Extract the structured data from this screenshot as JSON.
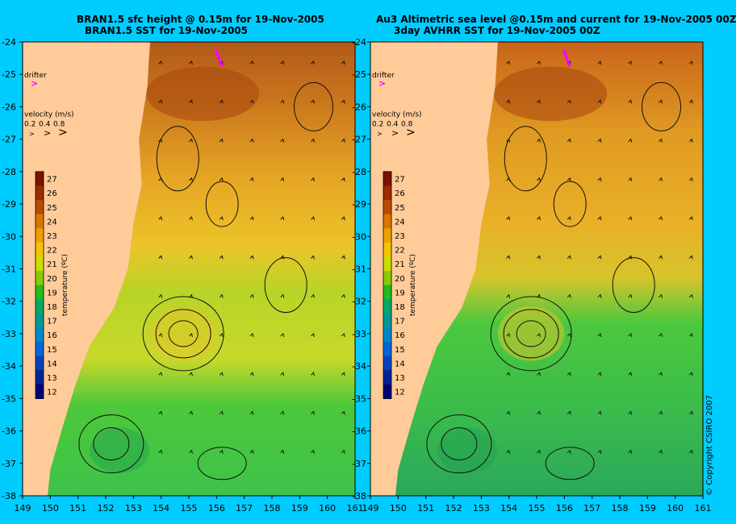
{
  "left_panel": {
    "title_line1": "BRAN1.5 sfc height @ 0.15m for 19-Nov-2005",
    "title_line2": "BRAN1.5 SST for 19-Nov-2005"
  },
  "right_panel": {
    "title_line1": "Au3 Altimetric sea level  @0.15m and current for 19-Nov-2005 00Z",
    "title_line2": "3day AVHRR SST for 19-Nov-2005 00Z"
  },
  "drifter_label": "drifter",
  "velocity": {
    "label": "velocity (m/s)",
    "scale_values": [
      "0.2",
      "0.4",
      "0.8"
    ]
  },
  "colorbar": {
    "label": "temperature (ºC)",
    "ticks": [
      "27",
      "26",
      "25",
      "24",
      "23",
      "22",
      "21",
      "20",
      "19",
      "18",
      "17",
      "16",
      "15",
      "14",
      "13",
      "12"
    ],
    "colors": [
      "#7a1200",
      "#9a2c00",
      "#bb4a00",
      "#d97800",
      "#f0a000",
      "#f5c400",
      "#ccdd00",
      "#88cc00",
      "#22bb22",
      "#00aa66",
      "#009999",
      "#0088cc",
      "#0066dd",
      "#0044bb",
      "#002299",
      "#000077"
    ]
  },
  "axes": {
    "lat_labels": [
      "-24",
      "-25",
      "-26",
      "-27",
      "-28",
      "-29",
      "-30",
      "-31",
      "-32",
      "-33",
      "-34",
      "-35",
      "-36",
      "-37",
      "-38"
    ],
    "lon_labels": [
      "149",
      "150",
      "151",
      "152",
      "153",
      "154",
      "155",
      "156",
      "157",
      "158",
      "159",
      "160",
      "161"
    ]
  },
  "copyright": "© Copyright CSIRO 2007",
  "colors": {
    "background": "#00ccff",
    "land": "#ffcc99",
    "drifter": "#ff00ff"
  }
}
